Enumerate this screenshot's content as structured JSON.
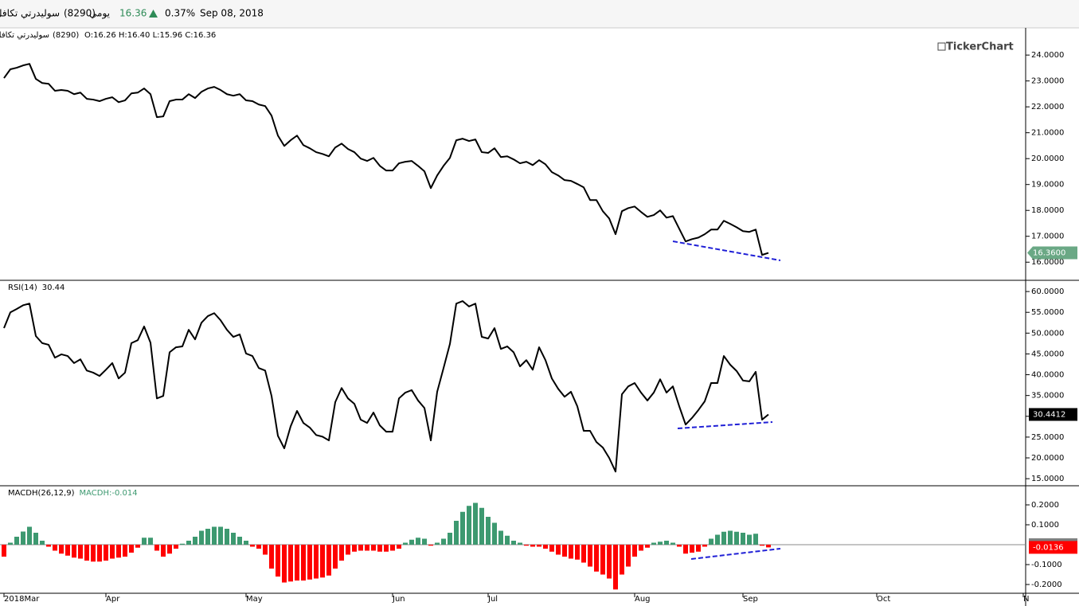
{
  "header": {
    "name": "سوليدرتي تكافل",
    "code": "(8290)",
    "period": "يومي",
    "last": "16.36",
    "change": "0.37%",
    "date": "Sep 08, 2018"
  },
  "watermark": "TickerChart",
  "chart_data": {
    "type": "stock",
    "categories": [
      "2018Mar",
      null,
      null,
      null,
      null,
      null,
      null,
      null,
      null,
      null,
      null,
      null,
      null,
      null,
      null,
      null,
      "Apr",
      null,
      null,
      null,
      null,
      null,
      null,
      null,
      null,
      null,
      null,
      null,
      null,
      null,
      null,
      null,
      null,
      null,
      null,
      null,
      null,
      null,
      "May",
      null,
      null,
      null,
      null,
      null,
      null,
      null,
      null,
      null,
      null,
      null,
      null,
      null,
      null,
      null,
      null,
      null,
      null,
      null,
      null,
      null,
      null,
      "Jun",
      null,
      null,
      null,
      null,
      null,
      null,
      null,
      null,
      null,
      null,
      null,
      null,
      null,
      null,
      "Jul",
      null,
      null,
      null,
      null,
      null,
      null,
      null,
      null,
      null,
      null,
      null,
      null,
      null,
      null,
      null,
      null,
      null,
      null,
      null,
      null,
      null,
      null,
      "Aug",
      null,
      null,
      null,
      null,
      null,
      null,
      null,
      null,
      null,
      null,
      null,
      null,
      null,
      null,
      null,
      null,
      "Sep",
      null,
      null,
      null,
      null,
      null,
      null,
      null,
      null,
      null,
      null,
      null,
      null,
      null,
      null,
      null,
      null,
      null,
      null,
      null,
      null,
      "Oct",
      null,
      null,
      null,
      null,
      null,
      null,
      null,
      null,
      null,
      null,
      null,
      null,
      null,
      null,
      null,
      null,
      null,
      null,
      null,
      null,
      null,
      null,
      "N"
    ],
    "panels": [
      {
        "type": "line",
        "legend_name": "سوليدرتي تكافل",
        "legend_code": "(8290)",
        "title": "O:16.26 H:16.40 L:15.96 C:16.36",
        "color": "#000000",
        "ylim": [
          15.3,
          25.05
        ],
        "yticks": [
          {
            "value": 16,
            "label": "16.0000"
          },
          {
            "value": 17,
            "label": "17.0000"
          },
          {
            "value": 18,
            "label": "18.0000"
          },
          {
            "value": 19,
            "label": "19.0000"
          },
          {
            "value": 20,
            "label": "20.0000"
          },
          {
            "value": 21,
            "label": "21.0000"
          },
          {
            "value": 22,
            "label": "22.0000"
          },
          {
            "value": 23,
            "label": "23.0000"
          },
          {
            "value": 24,
            "label": "24.0000"
          }
        ],
        "badges": [
          {
            "value": 16.36,
            "label": "16.3600",
            "color": "#6aa885",
            "text_color": "#ffffff",
            "pointer": true
          }
        ],
        "values": [
          23.11,
          23.45,
          23.51,
          23.6,
          23.66,
          23.08,
          22.92,
          22.89,
          22.62,
          22.65,
          22.62,
          22.49,
          22.55,
          22.31,
          22.28,
          22.22,
          22.31,
          22.37,
          22.18,
          22.25,
          22.52,
          22.55,
          22.71,
          22.49,
          21.6,
          21.63,
          22.22,
          22.28,
          22.28,
          22.49,
          22.34,
          22.58,
          22.71,
          22.77,
          22.65,
          22.49,
          22.43,
          22.49,
          22.25,
          22.22,
          22.09,
          22.03,
          21.66,
          20.89,
          20.49,
          20.71,
          20.89,
          20.52,
          20.4,
          20.25,
          20.18,
          20.09,
          20.43,
          20.58,
          20.37,
          20.25,
          20.0,
          19.91,
          20.03,
          19.72,
          19.54,
          19.54,
          19.82,
          19.88,
          19.91,
          19.72,
          19.51,
          18.86,
          19.35,
          19.72,
          20.03,
          20.71,
          20.77,
          20.68,
          20.74,
          20.25,
          20.22,
          20.4,
          20.06,
          20.09,
          19.97,
          19.82,
          19.88,
          19.75,
          19.94,
          19.78,
          19.48,
          19.35,
          19.17,
          19.14,
          19.02,
          18.89,
          18.4,
          18.4,
          17.97,
          17.69,
          17.08,
          17.97,
          18.09,
          18.15,
          17.94,
          17.75,
          17.82,
          18.0,
          17.72,
          17.78,
          17.29,
          16.8,
          16.89,
          16.95,
          17.08,
          17.26,
          17.26,
          17.6,
          17.48,
          17.35,
          17.2,
          17.17,
          17.26,
          16.28,
          16.36,
          null,
          null,
          null,
          null,
          null,
          null,
          null,
          null,
          null,
          null,
          null,
          null,
          null,
          null,
          null,
          null,
          null,
          null,
          null,
          null,
          null,
          null,
          null,
          null,
          null,
          null,
          null,
          null,
          null,
          null,
          null,
          null,
          null,
          null,
          null,
          null,
          null,
          null,
          null,
          null
        ]
      },
      {
        "type": "line",
        "title": "RSI(14)",
        "subtitle": "30.44",
        "color": "#000000",
        "ylim": [
          13.3,
          62.7
        ],
        "yticks": [
          {
            "value": 15,
            "label": "15.0000"
          },
          {
            "value": 20,
            "label": "20.0000"
          },
          {
            "value": 25,
            "label": "25.0000"
          },
          {
            "value": 30,
            "label": "30.0000"
          },
          {
            "value": 35,
            "label": "35.0000"
          },
          {
            "value": 40,
            "label": "40.0000"
          },
          {
            "value": 45,
            "label": "45.0000"
          },
          {
            "value": 50,
            "label": "50.0000"
          },
          {
            "value": 55,
            "label": "55.0000"
          },
          {
            "value": 60,
            "label": "60.0000"
          }
        ],
        "badges": [
          {
            "value": 30.4412,
            "label": "30.4412",
            "color": "#000000",
            "text_color": "#ffffff"
          }
        ],
        "values": [
          51.2,
          55.0,
          55.8,
          56.7,
          57.1,
          49.3,
          47.6,
          47.2,
          44.1,
          44.9,
          44.5,
          42.8,
          43.7,
          41.0,
          40.5,
          39.7,
          41.2,
          42.8,
          39.1,
          40.5,
          47.6,
          48.3,
          51.6,
          47.7,
          34.3,
          34.9,
          45.4,
          46.6,
          46.8,
          50.8,
          48.5,
          52.5,
          54.1,
          54.8,
          53.1,
          50.8,
          49.1,
          49.7,
          45.1,
          44.5,
          41.6,
          41.0,
          34.9,
          25.3,
          22.3,
          27.6,
          31.3,
          28.4,
          27.3,
          25.5,
          25.1,
          24.2,
          33.4,
          36.8,
          34.3,
          33.0,
          29.2,
          28.4,
          30.9,
          27.8,
          26.3,
          26.3,
          34.3,
          35.7,
          36.3,
          33.8,
          32.0,
          24.2,
          35.9,
          41.6,
          47.4,
          57.1,
          57.7,
          56.4,
          57.1,
          49.1,
          48.7,
          51.2,
          46.2,
          46.8,
          45.4,
          42.0,
          43.5,
          41.2,
          46.6,
          43.5,
          39.1,
          36.6,
          34.7,
          35.9,
          32.4,
          26.5,
          26.5,
          23.8,
          22.5,
          20.0,
          16.7,
          35.3,
          37.2,
          38.0,
          35.7,
          33.8,
          35.7,
          38.9,
          35.7,
          37.2,
          32.4,
          28.0,
          29.6,
          31.5,
          33.6,
          38.0,
          38.0,
          44.5,
          42.4,
          40.9,
          38.6,
          38.4,
          40.7,
          29.2,
          30.44,
          null,
          null,
          null,
          null,
          null,
          null,
          null,
          null,
          null,
          null,
          null,
          null,
          null,
          null,
          null,
          null,
          null,
          null,
          null,
          null,
          null,
          null,
          null,
          null,
          null,
          null,
          null,
          null,
          null,
          null,
          null,
          null,
          null,
          null,
          null,
          null,
          null,
          null,
          null,
          null
        ]
      },
      {
        "type": "histogram",
        "title": "MACDH(26,12,9)",
        "subtitle": "MACDH:-0.014",
        "subtitle_color": "#3d9970",
        "colors": {
          "up": "#3d9970",
          "down": "#ff0000"
        },
        "ylim": [
          -0.244,
          0.296
        ],
        "yticks": [
          {
            "value": -0.2,
            "label": "-0.2000"
          },
          {
            "value": -0.1,
            "label": "-0.1000"
          },
          {
            "value": 0.1,
            "label": "0.1000"
          },
          {
            "value": 0.2,
            "label": "0.2000"
          }
        ],
        "badges": [
          {
            "value": 0,
            "label": "0.0000",
            "color": "#7f7f7f",
            "text_color": "#ffffff",
            "line": true
          },
          {
            "value": -0.0136,
            "label": "-0.0136",
            "color": "#ff0000",
            "text_color": "#ffffff"
          }
        ],
        "values": [
          -0.06,
          0.01,
          0.04,
          0.066,
          0.09,
          0.06,
          0.02,
          -0.01,
          -0.03,
          -0.045,
          -0.055,
          -0.065,
          -0.07,
          -0.08,
          -0.085,
          -0.085,
          -0.08,
          -0.07,
          -0.065,
          -0.06,
          -0.04,
          -0.015,
          0.035,
          0.035,
          -0.03,
          -0.06,
          -0.045,
          -0.02,
          0.005,
          0.02,
          0.04,
          0.07,
          0.08,
          0.09,
          0.09,
          0.08,
          0.06,
          0.04,
          0.02,
          -0.01,
          -0.02,
          -0.05,
          -0.12,
          -0.16,
          -0.19,
          -0.185,
          -0.18,
          -0.18,
          -0.175,
          -0.17,
          -0.165,
          -0.155,
          -0.12,
          -0.08,
          -0.05,
          -0.035,
          -0.03,
          -0.03,
          -0.03,
          -0.035,
          -0.035,
          -0.03,
          -0.02,
          0.01,
          0.025,
          0.035,
          0.03,
          -0.005,
          0.01,
          0.03,
          0.06,
          0.12,
          0.165,
          0.195,
          0.21,
          0.185,
          0.14,
          0.11,
          0.07,
          0.045,
          0.02,
          0.01,
          -0.005,
          -0.01,
          -0.01,
          -0.02,
          -0.035,
          -0.05,
          -0.06,
          -0.07,
          -0.075,
          -0.09,
          -0.11,
          -0.135,
          -0.15,
          -0.17,
          -0.225,
          -0.15,
          -0.11,
          -0.06,
          -0.03,
          -0.015,
          0.01,
          0.015,
          0.02,
          0.01,
          -0.01,
          -0.045,
          -0.04,
          -0.035,
          -0.01,
          0.03,
          0.05,
          0.065,
          0.07,
          0.065,
          0.06,
          0.05,
          0.055,
          -0.005,
          -0.0136,
          null,
          null,
          null,
          null,
          null,
          null,
          null,
          null,
          null,
          null,
          null,
          null,
          null,
          null,
          null,
          null,
          null,
          null,
          null,
          null,
          null,
          null,
          null,
          null,
          null,
          null,
          null,
          null,
          null,
          null,
          null,
          null,
          null,
          null,
          null,
          null,
          null,
          null,
          null,
          null
        ]
      }
    ]
  }
}
